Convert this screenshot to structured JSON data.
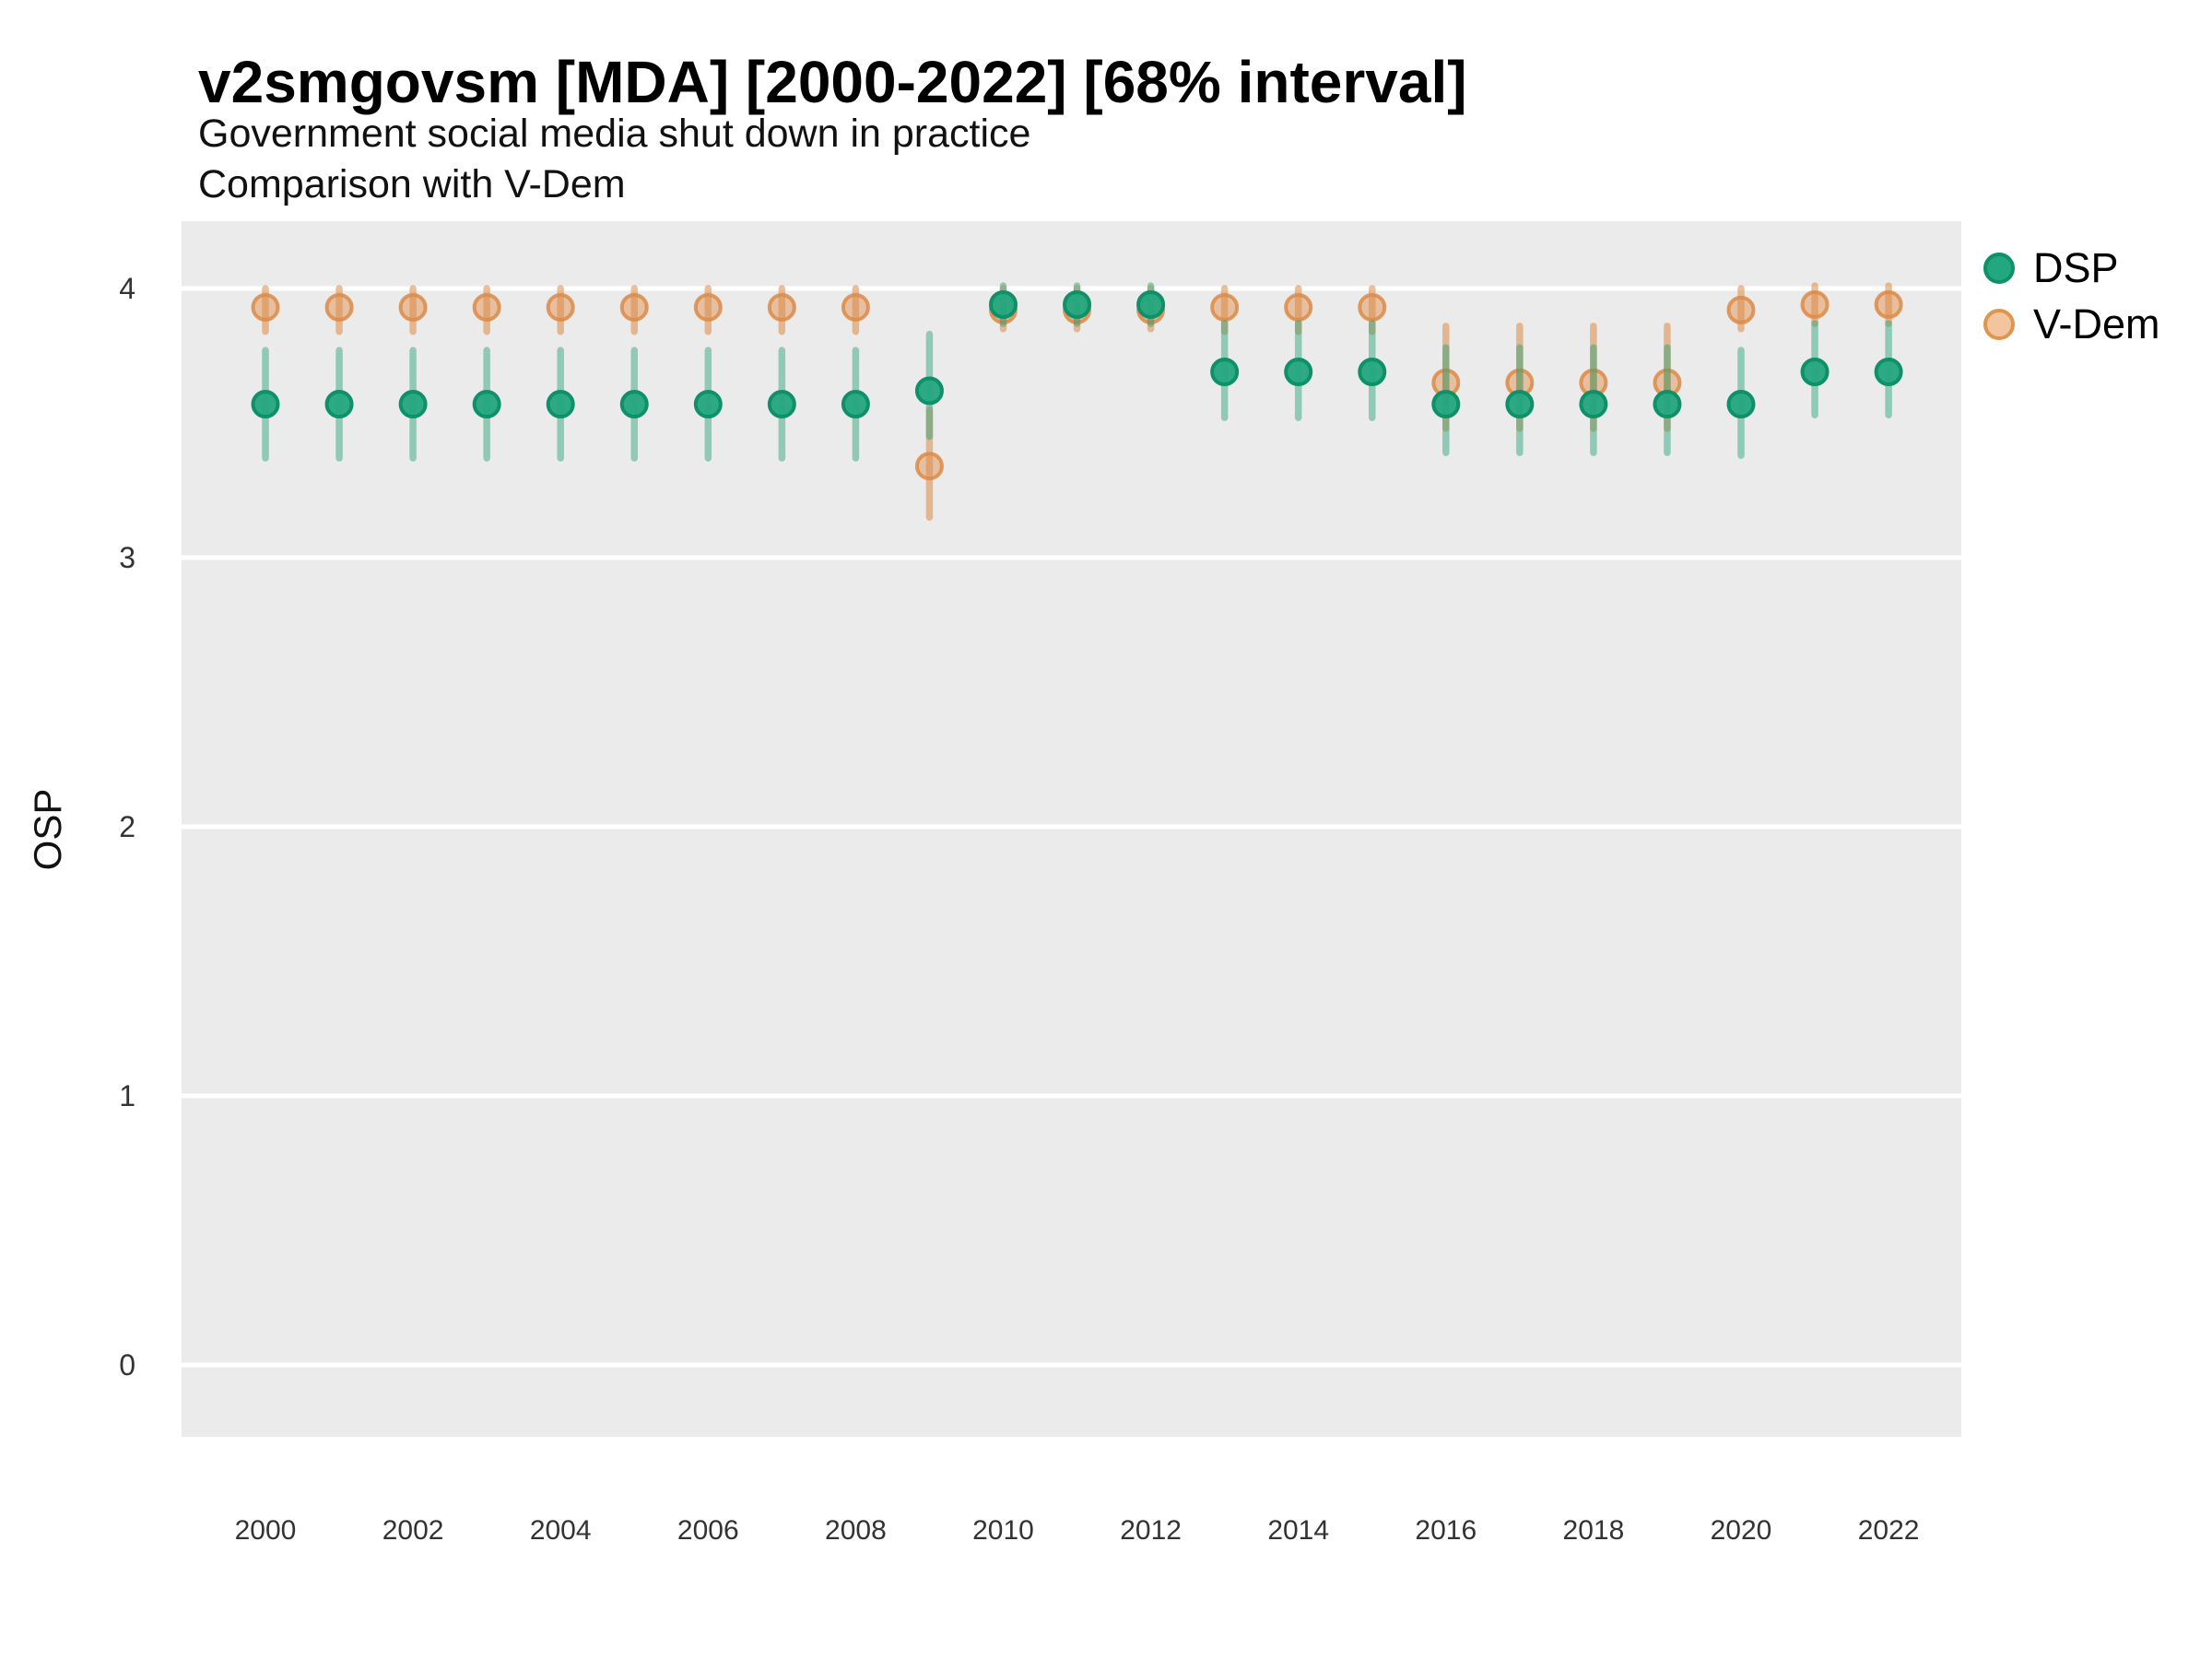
{
  "chart_data": {
    "type": "pointrange",
    "title": "v2smgovsm [MDA] [2000-2022] [68% interval]",
    "subtitle": "Government social media shut down in practice",
    "subtitle2": "Comparison with V-Dem",
    "ylabel": "OSP",
    "xlabel": "",
    "interval": "68%",
    "ylim": [
      -0.27,
      4.25
    ],
    "xlim": [
      1998.9,
      2023.1
    ],
    "yticks": [
      0,
      1,
      2,
      3,
      4
    ],
    "xticks": [
      2000,
      2002,
      2004,
      2006,
      2008,
      2010,
      2012,
      2014,
      2016,
      2018,
      2020,
      2022
    ],
    "grid": "major-y white lines on grey panel",
    "panel_color": "#EBEBEB",
    "gridline_color": "#FFFFFF",
    "tick_label_color": "#333333",
    "legend_position": "right",
    "series": [
      {
        "name": "DSP",
        "point_fill": "#23a77e",
        "point_stroke": "#0e9068",
        "line_color": "#1da276",
        "line_alpha": 0.45,
        "fill_alpha": 0.95,
        "stroke_alpha": 1,
        "values": [
          {
            "x": 2000,
            "y": 3.57,
            "lo": 3.37,
            "hi": 3.77
          },
          {
            "x": 2001,
            "y": 3.57,
            "lo": 3.37,
            "hi": 3.77
          },
          {
            "x": 2002,
            "y": 3.57,
            "lo": 3.37,
            "hi": 3.77
          },
          {
            "x": 2003,
            "y": 3.57,
            "lo": 3.37,
            "hi": 3.77
          },
          {
            "x": 2004,
            "y": 3.57,
            "lo": 3.37,
            "hi": 3.77
          },
          {
            "x": 2005,
            "y": 3.57,
            "lo": 3.37,
            "hi": 3.77
          },
          {
            "x": 2006,
            "y": 3.57,
            "lo": 3.37,
            "hi": 3.77
          },
          {
            "x": 2007,
            "y": 3.57,
            "lo": 3.37,
            "hi": 3.77
          },
          {
            "x": 2008,
            "y": 3.57,
            "lo": 3.37,
            "hi": 3.77
          },
          {
            "x": 2009,
            "y": 3.62,
            "lo": 3.45,
            "hi": 3.83
          },
          {
            "x": 2010,
            "y": 3.94,
            "lo": 3.87,
            "hi": 4.01
          },
          {
            "x": 2011,
            "y": 3.94,
            "lo": 3.87,
            "hi": 4.01
          },
          {
            "x": 2012,
            "y": 3.94,
            "lo": 3.87,
            "hi": 4.01
          },
          {
            "x": 2013,
            "y": 3.69,
            "lo": 3.52,
            "hi": 3.87
          },
          {
            "x": 2014,
            "y": 3.69,
            "lo": 3.52,
            "hi": 3.87
          },
          {
            "x": 2015,
            "y": 3.69,
            "lo": 3.52,
            "hi": 3.87
          },
          {
            "x": 2016,
            "y": 3.57,
            "lo": 3.39,
            "hi": 3.78
          },
          {
            "x": 2017,
            "y": 3.57,
            "lo": 3.39,
            "hi": 3.78
          },
          {
            "x": 2018,
            "y": 3.57,
            "lo": 3.39,
            "hi": 3.78
          },
          {
            "x": 2019,
            "y": 3.57,
            "lo": 3.39,
            "hi": 3.78
          },
          {
            "x": 2020,
            "y": 3.57,
            "lo": 3.38,
            "hi": 3.77
          },
          {
            "x": 2021,
            "y": 3.69,
            "lo": 3.53,
            "hi": 3.87
          },
          {
            "x": 2022,
            "y": 3.69,
            "lo": 3.53,
            "hi": 3.87
          }
        ]
      },
      {
        "name": "V-Dem",
        "point_fill": "#dd8a45",
        "point_stroke": "#dd8a45",
        "line_color": "#dd8a45",
        "line_alpha": 0.55,
        "fill_alpha": 0.45,
        "stroke_alpha": 0.85,
        "values": [
          {
            "x": 2000,
            "y": 3.93,
            "lo": 3.84,
            "hi": 4.0
          },
          {
            "x": 2001,
            "y": 3.93,
            "lo": 3.84,
            "hi": 4.0
          },
          {
            "x": 2002,
            "y": 3.93,
            "lo": 3.84,
            "hi": 4.0
          },
          {
            "x": 2003,
            "y": 3.93,
            "lo": 3.84,
            "hi": 4.0
          },
          {
            "x": 2004,
            "y": 3.93,
            "lo": 3.84,
            "hi": 4.0
          },
          {
            "x": 2005,
            "y": 3.93,
            "lo": 3.84,
            "hi": 4.0
          },
          {
            "x": 2006,
            "y": 3.93,
            "lo": 3.84,
            "hi": 4.0
          },
          {
            "x": 2007,
            "y": 3.93,
            "lo": 3.84,
            "hi": 4.0
          },
          {
            "x": 2008,
            "y": 3.93,
            "lo": 3.84,
            "hi": 4.0
          },
          {
            "x": 2009,
            "y": 3.34,
            "lo": 3.15,
            "hi": 3.55
          },
          {
            "x": 2010,
            "y": 3.92,
            "lo": 3.85,
            "hi": 4.0
          },
          {
            "x": 2011,
            "y": 3.92,
            "lo": 3.85,
            "hi": 4.0
          },
          {
            "x": 2012,
            "y": 3.92,
            "lo": 3.85,
            "hi": 4.0
          },
          {
            "x": 2013,
            "y": 3.93,
            "lo": 3.84,
            "hi": 4.0
          },
          {
            "x": 2014,
            "y": 3.93,
            "lo": 3.84,
            "hi": 4.0
          },
          {
            "x": 2015,
            "y": 3.93,
            "lo": 3.84,
            "hi": 4.0
          },
          {
            "x": 2016,
            "y": 3.65,
            "lo": 3.48,
            "hi": 3.86
          },
          {
            "x": 2017,
            "y": 3.65,
            "lo": 3.48,
            "hi": 3.86
          },
          {
            "x": 2018,
            "y": 3.65,
            "lo": 3.48,
            "hi": 3.86
          },
          {
            "x": 2019,
            "y": 3.65,
            "lo": 3.48,
            "hi": 3.86
          },
          {
            "x": 2020,
            "y": 3.92,
            "lo": 3.85,
            "hi": 4.0
          },
          {
            "x": 2021,
            "y": 3.94,
            "lo": 3.87,
            "hi": 4.01
          },
          {
            "x": 2022,
            "y": 3.94,
            "lo": 3.87,
            "hi": 4.01
          }
        ]
      }
    ]
  },
  "legend": {
    "items": [
      {
        "label": "DSP",
        "fill": "#23a77e",
        "border": "#0e9068"
      },
      {
        "label": "V-Dem",
        "fill": "#f2c5a0",
        "border": "#e0954f"
      }
    ]
  }
}
